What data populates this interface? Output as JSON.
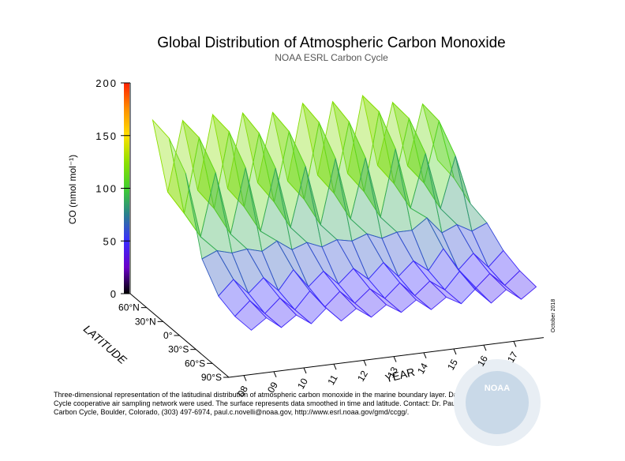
{
  "chart_data": {
    "type": "surface3d",
    "title": "Global Distribution of Atmospheric Carbon Monoxide",
    "subtitle": "NOAA ESRL Carbon Cycle",
    "zlabel": "CO (nmol mol⁻¹)",
    "ylabel": "LATITUDE",
    "xlabel": "YEAR",
    "date_note": "October 2018",
    "caption": [
      "Three-dimensional representation of the latitudinal distribution of atmospheric carbon monoxide in the marine boundary layer.  Data from the Carbon",
      "Cycle cooperative air sampling network were used.  The surface represents data smoothed in time and latitude.  Contact:  Dr. Paul Novelli, NOAA ESRL",
      "Carbon Cycle, Boulder, Colorado, (303) 497-6974, paul.c.novelli@noaa.gov, http://www.esrl.noaa.gov/gmd/ccgg/."
    ],
    "logo": "NOAA",
    "zlim": [
      0,
      200
    ],
    "zticks": [
      0,
      50,
      100,
      150,
      200
    ],
    "ylim": [
      -90,
      90
    ],
    "yticks": [
      {
        "value": 60,
        "label": "60°N"
      },
      {
        "value": 30,
        "label": "30°N"
      },
      {
        "value": 0,
        "label": "0°"
      },
      {
        "value": -30,
        "label": "30°S"
      },
      {
        "value": -60,
        "label": "60°S"
      },
      {
        "value": -90,
        "label": "90°S"
      }
    ],
    "xlim": [
      2007.5,
      2018
    ],
    "xticks": [
      {
        "value": 2008,
        "label": "08"
      },
      {
        "value": 2009,
        "label": "09"
      },
      {
        "value": 2010,
        "label": "10"
      },
      {
        "value": 2011,
        "label": "11"
      },
      {
        "value": 2012,
        "label": "12"
      },
      {
        "value": 2013,
        "label": "13"
      },
      {
        "value": 2014,
        "label": "14"
      },
      {
        "value": 2015,
        "label": "15"
      },
      {
        "value": 2016,
        "label": "16"
      },
      {
        "value": 2017,
        "label": "17"
      }
    ],
    "colorscale": [
      "#000000",
      "#6a00c8",
      "#3a2cff",
      "#2a7f8f",
      "#3fcf2f",
      "#8fe000",
      "#ffe000",
      "#ff9000",
      "#ff2000"
    ],
    "x": [
      2008.25,
      2008.75,
      2009.25,
      2009.75,
      2010.25,
      2010.75,
      2011.25,
      2011.75,
      2012.25,
      2012.75,
      2013.25,
      2013.75,
      2014.25,
      2014.75,
      2015.25,
      2015.75,
      2016.25,
      2016.75,
      2017.25,
      2017.75
    ],
    "latitudes": [
      90,
      60,
      30,
      0,
      -30,
      -60,
      -90
    ],
    "z": [
      [
        162,
        92,
        158,
        90,
        160,
        88,
        158,
        90,
        155,
        88,
        160,
        90,
        158,
        88,
        160,
        92,
        150,
        88,
        145,
        90
      ],
      [
        158,
        85,
        155,
        86,
        157,
        84,
        152,
        85,
        150,
        84,
        155,
        86,
        152,
        84,
        158,
        88,
        148,
        85,
        142,
        86
      ],
      [
        138,
        76,
        135,
        75,
        136,
        74,
        132,
        74,
        130,
        73,
        134,
        75,
        131,
        73,
        136,
        78,
        128,
        74,
        122,
        75
      ],
      [
        70,
        76,
        72,
        74,
        70,
        78,
        68,
        73,
        67,
        72,
        69,
        74,
        68,
        72,
        72,
        82,
        66,
        72,
        64,
        70
      ],
      [
        48,
        62,
        47,
        60,
        46,
        64,
        46,
        59,
        45,
        58,
        46,
        60,
        45,
        58,
        47,
        66,
        44,
        58,
        43,
        57
      ],
      [
        42,
        55,
        41,
        54,
        41,
        57,
        40,
        53,
        40,
        52,
        41,
        54,
        40,
        52,
        42,
        58,
        39,
        52,
        39,
        51
      ],
      [
        42,
        52,
        41,
        51,
        41,
        54,
        40,
        50,
        40,
        50,
        41,
        51,
        40,
        50,
        42,
        55,
        39,
        50,
        39,
        49
      ]
    ]
  }
}
